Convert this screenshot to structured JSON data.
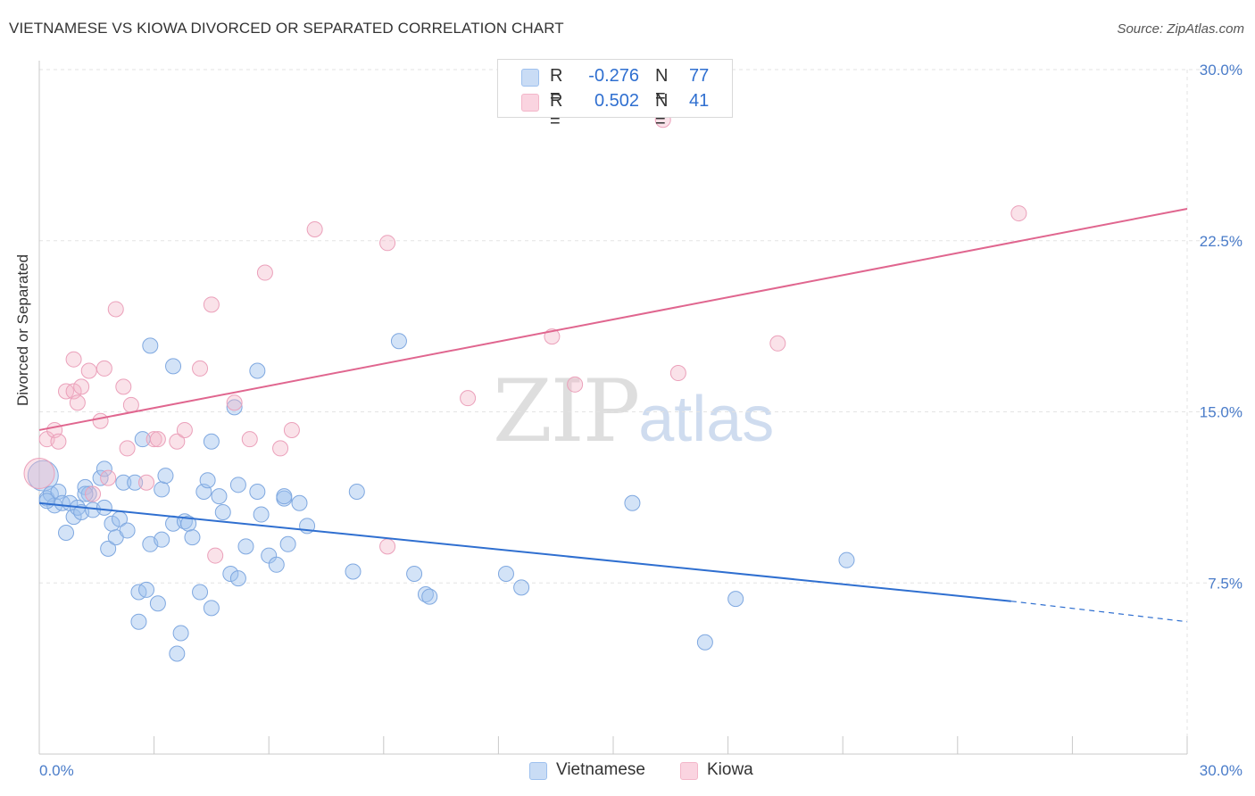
{
  "header": {
    "title": "VIETNAMESE VS KIOWA DIVORCED OR SEPARATED CORRELATION CHART",
    "source": "Source: ZipAtlas.com"
  },
  "watermark": {
    "zip": "ZIP",
    "atlas": "atlas"
  },
  "legend": {
    "rows": [
      {
        "r_label": "R =",
        "r_value": "-0.276",
        "n_label": "N =",
        "n_value": "77",
        "color": "#9dc0ee"
      },
      {
        "r_label": "R =",
        "r_value": "0.502",
        "n_label": "N =",
        "n_value": "41",
        "color": "#f3b6c9"
      }
    ]
  },
  "bottom_legend": {
    "items": [
      "Vietnamese",
      "Kiowa"
    ]
  },
  "chart_data": {
    "type": "scatter",
    "title": "VIETNAMESE VS KIOWA DIVORCED OR SEPARATED CORRELATION CHART",
    "xlabel": "",
    "ylabel": "Divorced or Separated",
    "xlim": [
      0,
      30
    ],
    "ylim": [
      0,
      30
    ],
    "x_tick_labels": [
      "0.0%",
      "30.0%"
    ],
    "y_ticks": [
      7.5,
      15.0,
      22.5,
      30.0
    ],
    "y_tick_labels": [
      "7.5%",
      "15.0%",
      "22.5%",
      "30.0%"
    ],
    "grid": true,
    "legend_position": "top-center",
    "colors": {
      "Vietnamese": "#2f6fd0",
      "Kiowa": "#e0668f"
    },
    "series": [
      {
        "name": "Vietnamese",
        "points": [
          [
            0.1,
            12.2
          ],
          [
            0.2,
            11.2
          ],
          [
            0.3,
            11.4
          ],
          [
            0.4,
            10.9
          ],
          [
            0.5,
            11.5
          ],
          [
            0.6,
            11.0
          ],
          [
            0.7,
            9.7
          ],
          [
            0.8,
            11.0
          ],
          [
            0.9,
            10.4
          ],
          [
            1.0,
            10.8
          ],
          [
            1.1,
            10.6
          ],
          [
            1.2,
            11.7
          ],
          [
            1.3,
            11.4
          ],
          [
            1.4,
            10.7
          ],
          [
            1.6,
            12.1
          ],
          [
            1.7,
            10.8
          ],
          [
            1.7,
            12.5
          ],
          [
            1.8,
            9.0
          ],
          [
            1.9,
            10.1
          ],
          [
            2.0,
            9.5
          ],
          [
            2.1,
            10.3
          ],
          [
            2.2,
            11.9
          ],
          [
            2.3,
            9.8
          ],
          [
            2.5,
            11.9
          ],
          [
            2.6,
            7.1
          ],
          [
            2.6,
            5.8
          ],
          [
            2.7,
            13.8
          ],
          [
            2.8,
            7.2
          ],
          [
            2.9,
            17.9
          ],
          [
            2.9,
            9.2
          ],
          [
            3.1,
            6.6
          ],
          [
            3.2,
            9.4
          ],
          [
            3.2,
            11.6
          ],
          [
            3.3,
            12.2
          ],
          [
            3.5,
            10.1
          ],
          [
            3.5,
            17.0
          ],
          [
            3.6,
            4.4
          ],
          [
            3.7,
            5.3
          ],
          [
            3.8,
            10.2
          ],
          [
            3.9,
            10.1
          ],
          [
            4.0,
            9.5
          ],
          [
            4.2,
            7.1
          ],
          [
            4.3,
            11.5
          ],
          [
            4.4,
            12.0
          ],
          [
            4.5,
            6.4
          ],
          [
            4.5,
            13.7
          ],
          [
            4.7,
            11.3
          ],
          [
            4.8,
            10.6
          ],
          [
            5.0,
            7.9
          ],
          [
            5.1,
            15.2
          ],
          [
            5.2,
            11.8
          ],
          [
            5.2,
            7.7
          ],
          [
            5.4,
            9.1
          ],
          [
            5.7,
            11.5
          ],
          [
            5.7,
            16.8
          ],
          [
            5.8,
            10.5
          ],
          [
            6.0,
            8.7
          ],
          [
            6.2,
            8.3
          ],
          [
            6.4,
            11.2
          ],
          [
            6.5,
            9.2
          ],
          [
            6.8,
            11.0
          ],
          [
            7.0,
            10.0
          ],
          [
            8.2,
            8.0
          ],
          [
            8.3,
            11.5
          ],
          [
            9.4,
            18.1
          ],
          [
            9.8,
            7.9
          ],
          [
            10.1,
            7.0
          ],
          [
            10.2,
            6.9
          ],
          [
            12.2,
            7.9
          ],
          [
            12.6,
            7.3
          ],
          [
            15.5,
            11.0
          ],
          [
            17.4,
            4.9
          ],
          [
            18.2,
            6.8
          ],
          [
            21.1,
            8.5
          ],
          [
            0.2,
            11.1
          ],
          [
            1.2,
            11.4
          ],
          [
            6.4,
            11.3
          ]
        ],
        "trend": {
          "x": [
            0,
            25.4
          ],
          "y": [
            11.0,
            6.7
          ]
        },
        "trend_dashed": {
          "x": [
            25.4,
            30
          ],
          "y": [
            6.7,
            5.8
          ]
        }
      },
      {
        "name": "Kiowa",
        "points": [
          [
            0.0,
            12.3
          ],
          [
            0.2,
            13.8
          ],
          [
            0.4,
            14.2
          ],
          [
            0.5,
            13.7
          ],
          [
            0.7,
            15.9
          ],
          [
            0.9,
            15.9
          ],
          [
            0.9,
            17.3
          ],
          [
            1.0,
            15.4
          ],
          [
            1.1,
            16.1
          ],
          [
            1.3,
            16.8
          ],
          [
            1.4,
            11.4
          ],
          [
            1.6,
            14.6
          ],
          [
            1.7,
            16.9
          ],
          [
            1.8,
            12.1
          ],
          [
            2.0,
            19.5
          ],
          [
            2.2,
            16.1
          ],
          [
            2.3,
            13.4
          ],
          [
            2.4,
            15.3
          ],
          [
            2.8,
            11.9
          ],
          [
            3.0,
            13.8
          ],
          [
            3.1,
            13.8
          ],
          [
            3.6,
            13.7
          ],
          [
            3.8,
            14.2
          ],
          [
            4.2,
            16.9
          ],
          [
            4.5,
            19.7
          ],
          [
            4.6,
            8.7
          ],
          [
            5.1,
            15.4
          ],
          [
            5.5,
            13.8
          ],
          [
            5.9,
            21.1
          ],
          [
            6.3,
            13.4
          ],
          [
            6.6,
            14.2
          ],
          [
            7.2,
            23.0
          ],
          [
            9.1,
            22.4
          ],
          [
            9.1,
            9.1
          ],
          [
            11.2,
            15.6
          ],
          [
            13.4,
            18.3
          ],
          [
            14.0,
            16.2
          ],
          [
            16.3,
            27.8
          ],
          [
            16.7,
            16.7
          ],
          [
            19.3,
            18.0
          ],
          [
            25.6,
            23.7
          ]
        ],
        "trend": {
          "x": [
            0,
            30
          ],
          "y": [
            14.2,
            23.9
          ]
        }
      }
    ]
  }
}
